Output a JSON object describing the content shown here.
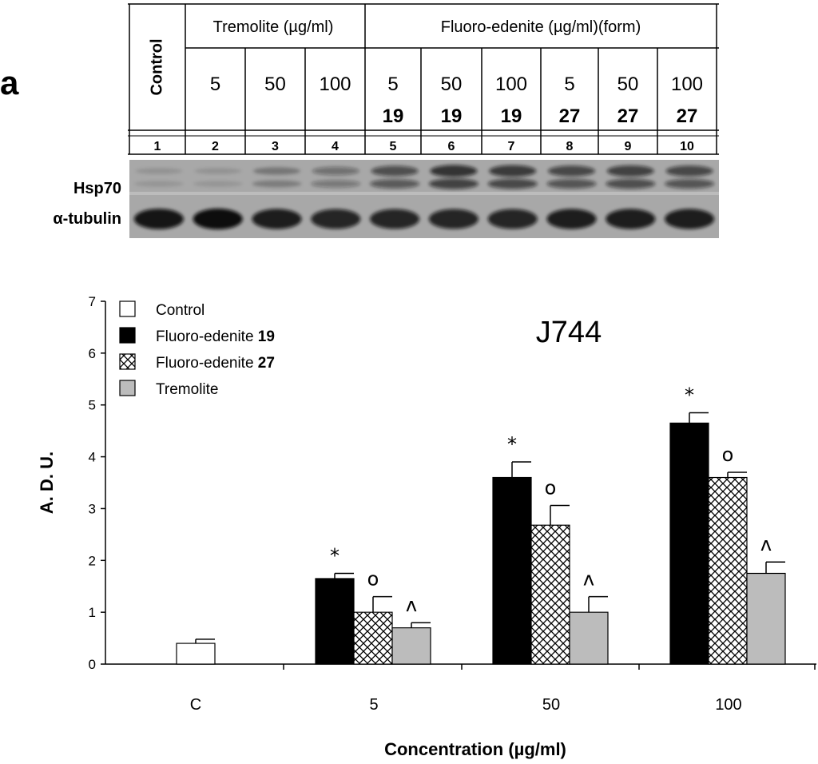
{
  "panel_label": "a",
  "blot": {
    "control_label": "Control",
    "tremolite_header": "Tremolite (µg/ml)",
    "fluoro_header": "Fluoro-edenite (µg/ml)(form)",
    "columns": [
      {
        "conc": "",
        "form": "",
        "lane": "1"
      },
      {
        "conc": "5",
        "form": "",
        "lane": "2"
      },
      {
        "conc": "50",
        "form": "",
        "lane": "3"
      },
      {
        "conc": "100",
        "form": "",
        "lane": "4"
      },
      {
        "conc": "5",
        "form": "19",
        "lane": "5"
      },
      {
        "conc": "50",
        "form": "19",
        "lane": "6"
      },
      {
        "conc": "100",
        "form": "19",
        "lane": "7"
      },
      {
        "conc": "5",
        "form": "27",
        "lane": "8"
      },
      {
        "conc": "50",
        "form": "27",
        "lane": "9"
      },
      {
        "conc": "100",
        "form": "27",
        "lane": "10"
      }
    ],
    "row_labels": [
      "Hsp70",
      "α-tubulin"
    ],
    "band_intensity": {
      "hsp70": [
        0.15,
        0.15,
        0.35,
        0.45,
        0.7,
        0.9,
        0.85,
        0.75,
        0.8,
        0.75
      ],
      "tubulin": [
        0.95,
        1.0,
        0.9,
        0.85,
        0.85,
        0.85,
        0.85,
        0.9,
        0.9,
        0.9
      ]
    }
  },
  "chart_data": {
    "type": "bar",
    "title": "J744",
    "xlabel": "Concentration (µg/ml)",
    "ylabel": "A. D. U.",
    "ylim": [
      0,
      7
    ],
    "yticks": [
      0,
      1,
      2,
      3,
      4,
      5,
      6,
      7
    ],
    "categories": [
      "C",
      "5",
      "50",
      "100"
    ],
    "series": [
      {
        "name": "Control",
        "label_main": "Control",
        "label_bold": "",
        "fill": "white",
        "values": [
          0.4,
          null,
          null,
          null
        ],
        "errors": [
          0.08,
          null,
          null,
          null
        ],
        "marks": [
          "",
          "",
          "",
          ""
        ]
      },
      {
        "name": "Fluoro-edenite 19",
        "label_main": "Fluoro-edenite ",
        "label_bold": "19",
        "fill": "black",
        "values": [
          null,
          1.65,
          3.6,
          4.65
        ],
        "errors": [
          null,
          0.1,
          0.3,
          0.2
        ],
        "marks": [
          "",
          "*",
          "*",
          "*"
        ]
      },
      {
        "name": "Fluoro-edenite 27",
        "label_main": "Fluoro-edenite ",
        "label_bold": "27",
        "fill": "crosshatch",
        "values": [
          null,
          1.0,
          2.68,
          3.6
        ],
        "errors": [
          null,
          0.3,
          0.38,
          0.1
        ],
        "marks": [
          "",
          "o",
          "o",
          "o"
        ]
      },
      {
        "name": "Tremolite",
        "label_main": "Tremolite",
        "label_bold": "",
        "fill": "gray",
        "values": [
          null,
          0.7,
          1.0,
          1.75
        ],
        "errors": [
          null,
          0.1,
          0.3,
          0.22
        ],
        "marks": [
          "",
          "^",
          "^",
          "^"
        ]
      }
    ],
    "legend_position": "top-left",
    "grid": false
  }
}
